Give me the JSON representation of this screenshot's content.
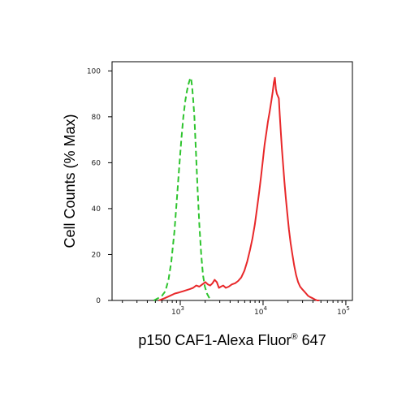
{
  "chart_data": {
    "type": "line",
    "xlabel": "p150 CAF1-Alexa Fluor",
    "xlabel_sup": "®",
    "xlabel_suffix": " 647",
    "ylabel": "Cell Counts (% Max)",
    "x_scale": "log",
    "xlim": [
      150,
      120000
    ],
    "ylim": [
      0,
      104
    ],
    "y_ticks": [
      0,
      20,
      40,
      60,
      80,
      100
    ],
    "x_major_ticks": [
      1000,
      10000,
      100000
    ],
    "x_tick_labels": [
      {
        "base": "10",
        "exp": "3"
      },
      {
        "base": "10",
        "exp": "4"
      },
      {
        "base": "10",
        "exp": "5"
      }
    ],
    "grid": false,
    "series": [
      {
        "color": "#2ec42e",
        "dash": "dashed",
        "x": [
          480,
          540,
          600,
          660,
          720,
          780,
          850,
          910,
          970,
          1030,
          1090,
          1150,
          1200,
          1250,
          1300,
          1330,
          1360,
          1390,
          1430,
          1480,
          1550,
          1620,
          1700,
          1790,
          1880,
          1980,
          2100,
          2250,
          2400
        ],
        "y": [
          0,
          1,
          2,
          4,
          9,
          17,
          30,
          44,
          58,
          70,
          80,
          87,
          91,
          94,
          96,
          97,
          96,
          93,
          88,
          80,
          64,
          48,
          33,
          20,
          11,
          6,
          3,
          1,
          0
        ]
      },
      {
        "color": "#e8282a",
        "dash": "solid",
        "x": [
          550,
          650,
          750,
          860,
          970,
          1080,
          1190,
          1310,
          1430,
          1560,
          1700,
          1850,
          2010,
          2150,
          2300,
          2450,
          2600,
          2760,
          2930,
          3100,
          3300,
          3550,
          3850,
          4200,
          4600,
          5000,
          5450,
          5950,
          6450,
          6950,
          7450,
          7950,
          8450,
          8950,
          9450,
          9950,
          10450,
          10950,
          11450,
          12000,
          12600,
          13100,
          13500,
          13900,
          14300,
          14700,
          15100,
          15500,
          15900,
          16400,
          16900,
          17500,
          18100,
          18800,
          19600,
          20500,
          21500,
          22600,
          23800,
          25100,
          26500,
          28000,
          29600,
          31300,
          33100,
          35000,
          37000,
          39500,
          42000,
          45000,
          48000
        ],
        "y": [
          0,
          1,
          2,
          3,
          3.5,
          4,
          4.5,
          5,
          5.5,
          6.5,
          6,
          7,
          8,
          7,
          6.5,
          7.5,
          9,
          8,
          5.5,
          6,
          6.5,
          5.5,
          6,
          7,
          7.5,
          8.5,
          10,
          13,
          17,
          22,
          27,
          33,
          40,
          47,
          54,
          61,
          68,
          73,
          78,
          82,
          87,
          91,
          95,
          97,
          92,
          90,
          89,
          88,
          81,
          73,
          66,
          59,
          52,
          45,
          38,
          31,
          25,
          20,
          15,
          11,
          8,
          6,
          5,
          4,
          3,
          2,
          1.5,
          1,
          0.5,
          0,
          0
        ]
      }
    ]
  }
}
